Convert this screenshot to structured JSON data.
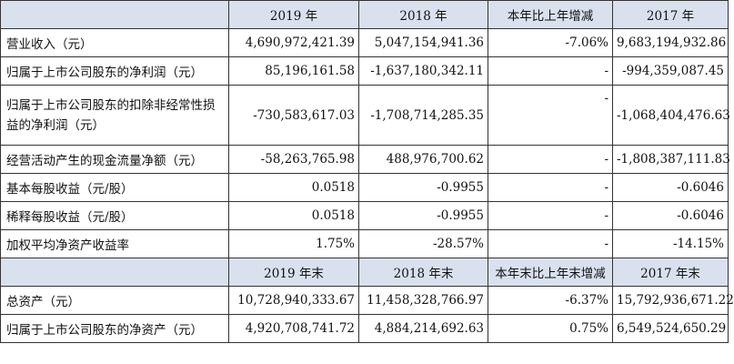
{
  "header1": {
    "label_col": "",
    "c1": "2019 年",
    "c2": "2018 年",
    "c3": "本年比上年增减",
    "c4": "2017 年"
  },
  "rows1": [
    {
      "label": "营业收入（元）",
      "v2019": "4,690,972,421.39",
      "v2018": "5,047,154,941.36",
      "change": "-7.06%",
      "v2017": "9,683,194,932.86"
    },
    {
      "label": "归属于上市公司股东的净利润（元）",
      "v2019": "85,196,161.58",
      "v2018": "-1,637,180,342.11",
      "change": "-",
      "v2017": "-994,359,087.45"
    },
    {
      "label": "归属于上市公司股东的扣除非经常性损益的净利润（元）",
      "v2019": "-730,583,617.03",
      "v2018": "-1,708,714,285.35",
      "change": "-",
      "v2017": "-1,068,404,476.63"
    },
    {
      "label": "经营活动产生的现金流量净额（元）",
      "v2019": "-58,263,765.98",
      "v2018": "488,976,700.62",
      "change": "-",
      "v2017": "-1,808,387,111.83"
    },
    {
      "label": "基本每股收益（元/股）",
      "v2019": "0.0518",
      "v2018": "-0.9955",
      "change": "-",
      "v2017": "-0.6046"
    },
    {
      "label": "稀释每股收益（元/股）",
      "v2019": "0.0518",
      "v2018": "-0.9955",
      "change": "-",
      "v2017": "-0.6046"
    },
    {
      "label": "加权平均净资产收益率",
      "v2019": "1.75%",
      "v2018": "-28.57%",
      "change": "-",
      "v2017": "-14.15%"
    }
  ],
  "header2": {
    "label_col": "",
    "c1": "2019 年末",
    "c2": "2018 年末",
    "c3": "本年末比上年末增减",
    "c4": "2017 年末"
  },
  "rows2": [
    {
      "label": "总资产（元）",
      "v2019": "10,728,940,333.67",
      "v2018": "11,458,328,766.97",
      "change": "-6.37%",
      "v2017": "15,792,936,671.22"
    },
    {
      "label": "归属于上市公司股东的净资产（元）",
      "v2019": "4,920,708,741.72",
      "v2018": "4,884,214,692.63",
      "change": "0.75%",
      "v2017": "6,549,524,650.29"
    }
  ]
}
